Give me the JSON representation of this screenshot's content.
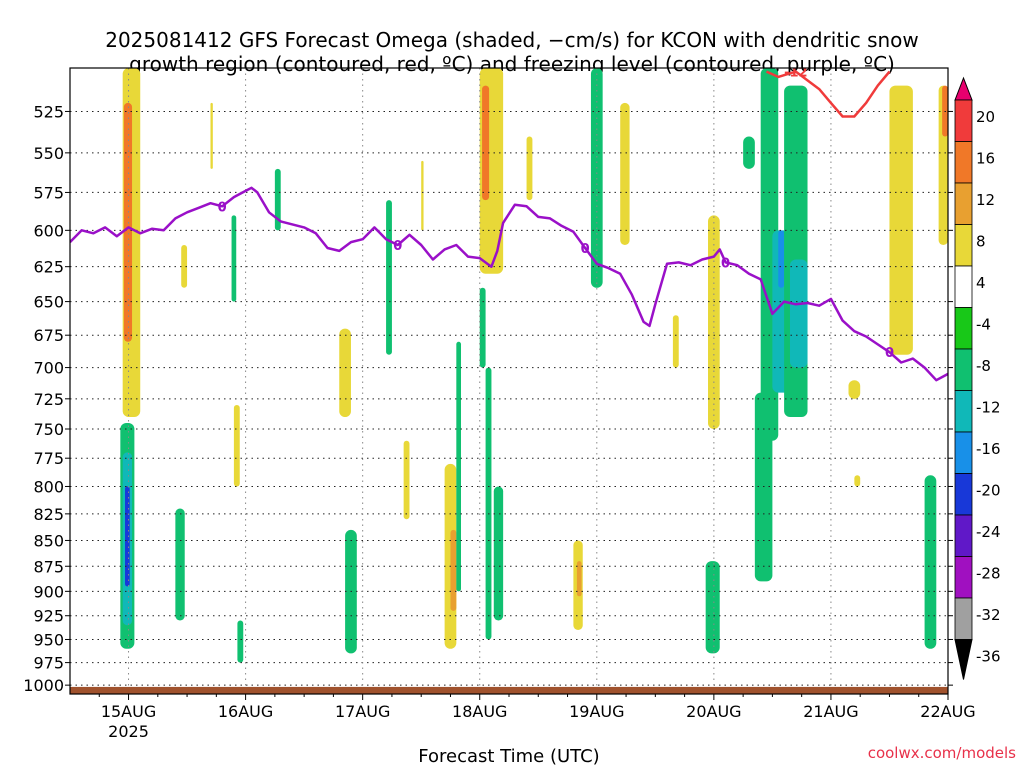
{
  "title_line1": "2025081412 GFS Forecast Omega (shaded, −cm/s) for KCON with dendritic snow",
  "title_line2": "growth region (contoured, red, ºC) and freezing level (contoured, purple, ºC)",
  "xlabel": "Forecast Time (UTC)",
  "credit": "coolwx.com/models",
  "chart_data": {
    "type": "heatmap",
    "x_ticks": [
      "15AUG",
      "16AUG",
      "17AUG",
      "18AUG",
      "19AUG",
      "20AUG",
      "21AUG",
      "22AUG"
    ],
    "x_tick_sublabel": "2025",
    "xlim_days": [
      14.5,
      22.0
    ],
    "y_ticks": [
      525,
      550,
      575,
      600,
      625,
      650,
      675,
      700,
      725,
      750,
      775,
      800,
      825,
      850,
      875,
      900,
      925,
      950,
      975,
      1000
    ],
    "ylim_hpa": [
      500,
      1010
    ],
    "y_scale": "log-pressure",
    "grid": true,
    "colorbar": {
      "labels": [
        "20",
        "16",
        "12",
        "8",
        "4",
        "-4",
        "-8",
        "-12",
        "-16",
        "-20",
        "-24",
        "-28",
        "-32",
        "-36"
      ],
      "colors": [
        "#e8006e",
        "#f03b3b",
        "#f07828",
        "#e8a030",
        "#e8d838",
        "#ffffff",
        "#18c818",
        "#10c070",
        "#10b8b8",
        "#1890e8",
        "#1838d8",
        "#6018c8",
        "#a010c0",
        "#a0a0a0",
        "#000000"
      ]
    },
    "freezing_level": {
      "color": "#9a10c8",
      "label": "0",
      "points": [
        [
          14.5,
          608
        ],
        [
          14.6,
          600
        ],
        [
          14.7,
          602
        ],
        [
          14.8,
          598
        ],
        [
          14.9,
          604
        ],
        [
          15.0,
          598
        ],
        [
          15.1,
          602
        ],
        [
          15.2,
          599
        ],
        [
          15.3,
          600
        ],
        [
          15.4,
          592
        ],
        [
          15.5,
          588
        ],
        [
          15.6,
          585
        ],
        [
          15.7,
          582
        ],
        [
          15.8,
          584
        ],
        [
          15.9,
          578
        ],
        [
          16.0,
          574
        ],
        [
          16.05,
          572
        ],
        [
          16.1,
          575
        ],
        [
          16.2,
          588
        ],
        [
          16.3,
          594
        ],
        [
          16.4,
          596
        ],
        [
          16.5,
          598
        ],
        [
          16.6,
          602
        ],
        [
          16.7,
          612
        ],
        [
          16.8,
          614
        ],
        [
          16.9,
          608
        ],
        [
          17.0,
          606
        ],
        [
          17.1,
          598
        ],
        [
          17.2,
          606
        ],
        [
          17.3,
          610
        ],
        [
          17.4,
          603
        ],
        [
          17.5,
          610
        ],
        [
          17.6,
          620
        ],
        [
          17.7,
          613
        ],
        [
          17.8,
          610
        ],
        [
          17.9,
          618
        ],
        [
          18.0,
          619
        ],
        [
          18.1,
          625
        ],
        [
          18.15,
          614
        ],
        [
          18.2,
          595
        ],
        [
          18.3,
          583
        ],
        [
          18.4,
          584
        ],
        [
          18.5,
          591
        ],
        [
          18.6,
          592
        ],
        [
          18.7,
          597
        ],
        [
          18.8,
          601
        ],
        [
          18.9,
          612
        ],
        [
          19.0,
          623
        ],
        [
          19.1,
          626
        ],
        [
          19.2,
          630
        ],
        [
          19.3,
          645
        ],
        [
          19.4,
          665
        ],
        [
          19.45,
          668
        ],
        [
          19.5,
          652
        ],
        [
          19.6,
          623
        ],
        [
          19.7,
          622
        ],
        [
          19.8,
          624
        ],
        [
          19.9,
          620
        ],
        [
          20.0,
          618
        ],
        [
          20.05,
          613
        ],
        [
          20.1,
          622
        ],
        [
          20.2,
          624
        ],
        [
          20.3,
          630
        ],
        [
          20.4,
          634
        ],
        [
          20.5,
          659
        ],
        [
          20.6,
          650
        ],
        [
          20.7,
          652
        ],
        [
          20.8,
          651
        ],
        [
          20.9,
          653
        ],
        [
          21.0,
          648
        ],
        [
          21.1,
          664
        ],
        [
          21.2,
          672
        ],
        [
          21.3,
          676
        ],
        [
          21.4,
          682
        ],
        [
          21.5,
          688
        ],
        [
          21.6,
          696
        ],
        [
          21.7,
          693
        ],
        [
          21.8,
          700
        ],
        [
          21.9,
          710
        ],
        [
          22.0,
          705
        ]
      ]
    },
    "dgz_line": {
      "color": "#f03b3b",
      "label": "-12",
      "points": [
        [
          20.45,
          502
        ],
        [
          20.55,
          505
        ],
        [
          20.7,
          502
        ],
        [
          20.9,
          512
        ],
        [
          21.0,
          520
        ],
        [
          21.1,
          528
        ],
        [
          21.2,
          528
        ],
        [
          21.3,
          520
        ],
        [
          21.4,
          510
        ],
        [
          21.5,
          502
        ]
      ]
    },
    "omega_cells": [
      {
        "t": [
          14.95,
          15.1
        ],
        "p": [
          500,
          740
        ],
        "v": 6
      },
      {
        "t": [
          14.96,
          15.03
        ],
        "p": [
          520,
          680
        ],
        "v": 12
      },
      {
        "t": [
          14.93,
          15.05
        ],
        "p": [
          745,
          960
        ],
        "v": -8
      },
      {
        "t": [
          14.95,
          15.03
        ],
        "p": [
          770,
          935
        ],
        "v": -12
      },
      {
        "t": [
          14.97,
          15.01
        ],
        "p": [
          800,
          895
        ],
        "v": -20
      },
      {
        "t": [
          15.4,
          15.48
        ],
        "p": [
          820,
          930
        ],
        "v": -8
      },
      {
        "t": [
          15.45,
          15.5
        ],
        "p": [
          610,
          640
        ],
        "v": 6
      },
      {
        "t": [
          15.9,
          15.95
        ],
        "p": [
          730,
          800
        ],
        "v": 6
      },
      {
        "t": [
          15.93,
          15.98
        ],
        "p": [
          930,
          975
        ],
        "v": -8
      },
      {
        "t": [
          15.88,
          15.92
        ],
        "p": [
          590,
          650
        ],
        "v": -8
      },
      {
        "t": [
          16.85,
          16.95
        ],
        "p": [
          840,
          965
        ],
        "v": -8
      },
      {
        "t": [
          16.8,
          16.9
        ],
        "p": [
          670,
          740
        ],
        "v": 6
      },
      {
        "t": [
          17.2,
          17.25
        ],
        "p": [
          580,
          690
        ],
        "v": -8
      },
      {
        "t": [
          17.35,
          17.4
        ],
        "p": [
          760,
          830
        ],
        "v": 6
      },
      {
        "t": [
          17.7,
          17.8
        ],
        "p": [
          780,
          960
        ],
        "v": 6
      },
      {
        "t": [
          17.75,
          17.8
        ],
        "p": [
          840,
          920
        ],
        "v": 8
      },
      {
        "t": [
          17.8,
          17.84
        ],
        "p": [
          680,
          900
        ],
        "v": -8
      },
      {
        "t": [
          18.0,
          18.2
        ],
        "p": [
          500,
          630
        ],
        "v": 6
      },
      {
        "t": [
          18.02,
          18.08
        ],
        "p": [
          510,
          580
        ],
        "v": 12
      },
      {
        "t": [
          18.05,
          18.1
        ],
        "p": [
          700,
          950
        ],
        "v": -8
      },
      {
        "t": [
          18.0,
          18.05
        ],
        "p": [
          640,
          700
        ],
        "v": -8
      },
      {
        "t": [
          18.12,
          18.2
        ],
        "p": [
          800,
          930
        ],
        "v": -8
      },
      {
        "t": [
          18.8,
          18.88
        ],
        "p": [
          850,
          940
        ],
        "v": 6
      },
      {
        "t": [
          18.83,
          18.87
        ],
        "p": [
          870,
          905
        ],
        "v": 8
      },
      {
        "t": [
          18.95,
          19.05
        ],
        "p": [
          500,
          640
        ],
        "v": -8
      },
      {
        "t": [
          19.2,
          19.28
        ],
        "p": [
          520,
          610
        ],
        "v": 6
      },
      {
        "t": [
          19.95,
          20.05
        ],
        "p": [
          590,
          750
        ],
        "v": 6
      },
      {
        "t": [
          19.93,
          20.05
        ],
        "p": [
          870,
          965
        ],
        "v": -8
      },
      {
        "t": [
          20.25,
          20.35
        ],
        "p": [
          540,
          560
        ],
        "v": -8
      },
      {
        "t": [
          20.35,
          20.5
        ],
        "p": [
          720,
          890
        ],
        "v": -8
      },
      {
        "t": [
          20.4,
          20.55
        ],
        "p": [
          500,
          760
        ],
        "v": -8
      },
      {
        "t": [
          20.5,
          20.65
        ],
        "p": [
          600,
          720
        ],
        "v": -12
      },
      {
        "t": [
          20.55,
          20.6
        ],
        "p": [
          600,
          640
        ],
        "v": -16
      },
      {
        "t": [
          20.6,
          20.8
        ],
        "p": [
          510,
          740
        ],
        "v": -8
      },
      {
        "t": [
          20.65,
          20.8
        ],
        "p": [
          620,
          700
        ],
        "v": -12
      },
      {
        "t": [
          21.5,
          21.7
        ],
        "p": [
          510,
          690
        ],
        "v": 6
      },
      {
        "t": [
          21.15,
          21.25
        ],
        "p": [
          710,
          725
        ],
        "v": 6
      },
      {
        "t": [
          21.2,
          21.25
        ],
        "p": [
          790,
          800
        ],
        "v": 6
      },
      {
        "t": [
          21.92,
          22.0
        ],
        "p": [
          510,
          610
        ],
        "v": 6
      },
      {
        "t": [
          21.95,
          22.0
        ],
        "p": [
          510,
          540
        ],
        "v": 12
      },
      {
        "t": [
          21.8,
          21.9
        ],
        "p": [
          790,
          960
        ],
        "v": -8
      },
      {
        "t": [
          15.7,
          15.72
        ],
        "p": [
          520,
          560
        ],
        "v": 6
      },
      {
        "t": [
          17.5,
          17.52
        ],
        "p": [
          555,
          600
        ],
        "v": 6
      },
      {
        "t": [
          18.4,
          18.45
        ],
        "p": [
          540,
          580
        ],
        "v": 6
      },
      {
        "t": [
          16.25,
          16.3
        ],
        "p": [
          560,
          600
        ],
        "v": -8
      },
      {
        "t": [
          19.65,
          19.7
        ],
        "p": [
          660,
          700
        ],
        "v": 6
      }
    ]
  }
}
